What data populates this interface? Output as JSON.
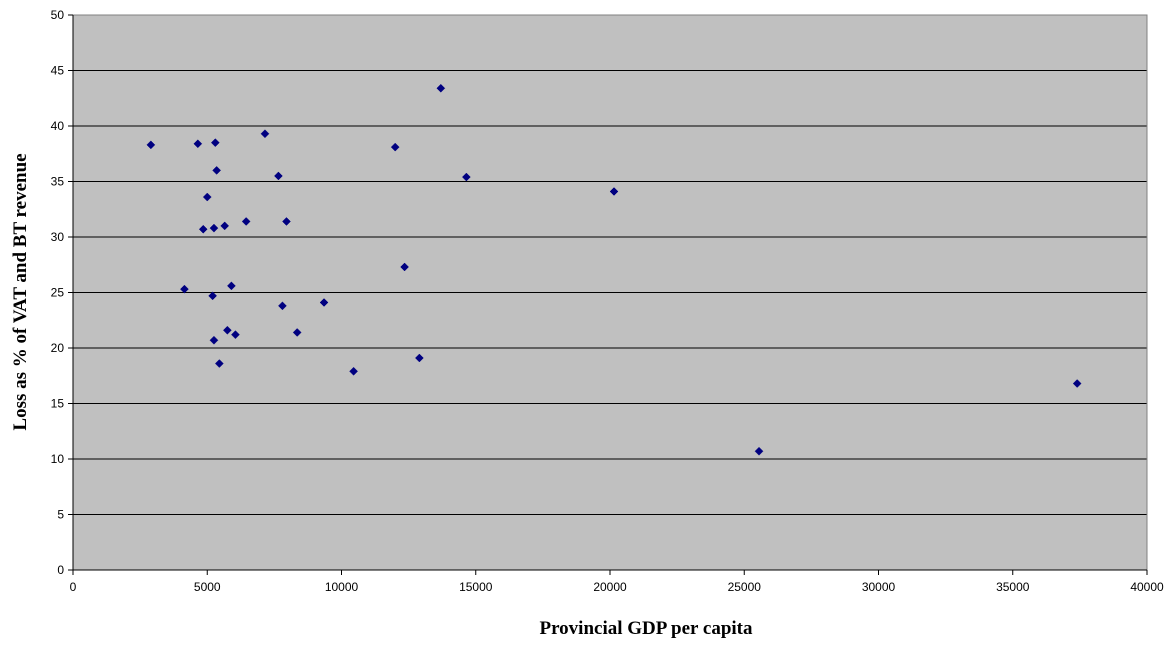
{
  "chart_data": {
    "type": "scatter",
    "title": "",
    "xlabel": "Provincial GDP per capita",
    "ylabel": "Loss as % of VAT and BT revenue",
    "xlim": [
      0,
      40000
    ],
    "ylim": [
      0,
      50
    ],
    "x_ticks": [
      0,
      5000,
      10000,
      15000,
      20000,
      25000,
      30000,
      35000,
      40000
    ],
    "y_ticks": [
      0,
      5,
      10,
      15,
      20,
      25,
      30,
      35,
      40,
      45,
      50
    ],
    "grid": "horizontal major gridlines",
    "legend": "none",
    "colors": {
      "plot_area": "#c0c0c0",
      "marker": "#000080",
      "gridline": "#000000"
    },
    "series": [
      {
        "points": [
          [
            2900,
            38.3
          ],
          [
            4150,
            25.3
          ],
          [
            4650,
            38.4
          ],
          [
            4850,
            30.7
          ],
          [
            5000,
            33.6
          ],
          [
            5200,
            24.7
          ],
          [
            5250,
            20.7
          ],
          [
            5250,
            30.8
          ],
          [
            5300,
            38.5
          ],
          [
            5350,
            36.0
          ],
          [
            5450,
            18.6
          ],
          [
            5650,
            31.0
          ],
          [
            5750,
            21.6
          ],
          [
            5900,
            25.6
          ],
          [
            6050,
            21.2
          ],
          [
            6450,
            31.4
          ],
          [
            7150,
            39.3
          ],
          [
            7650,
            35.5
          ],
          [
            7800,
            23.8
          ],
          [
            7950,
            31.4
          ],
          [
            8350,
            21.4
          ],
          [
            9350,
            24.1
          ],
          [
            10450,
            17.9
          ],
          [
            12000,
            38.1
          ],
          [
            12350,
            27.3
          ],
          [
            12900,
            19.1
          ],
          [
            13700,
            43.4
          ],
          [
            14650,
            35.4
          ],
          [
            20150,
            34.1
          ],
          [
            25550,
            10.7
          ],
          [
            37400,
            16.8
          ]
        ]
      }
    ]
  }
}
